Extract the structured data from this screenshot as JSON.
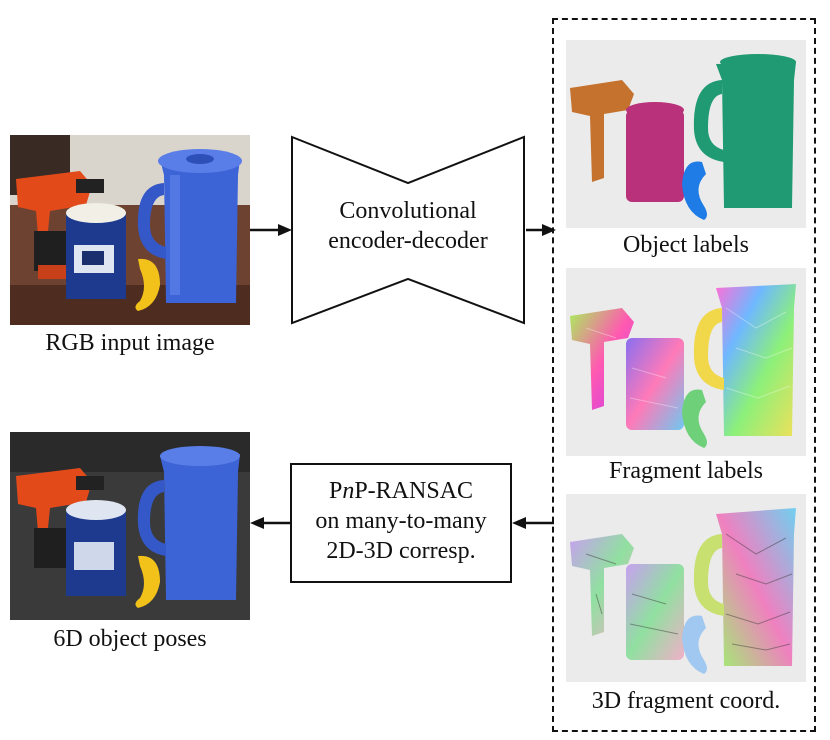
{
  "diagram": {
    "nodes": {
      "rgb_input": {
        "caption": "RGB input image"
      },
      "encoder_decoder": {
        "line1": "Convolutional",
        "line2": "encoder-decoder"
      },
      "object_labels": {
        "caption": "Object labels"
      },
      "fragment_labels": {
        "caption": "Fragment labels"
      },
      "fragment_coords": {
        "caption": "3D fragment coord."
      },
      "pnp_ransac": {
        "line1_pre": "P",
        "line1_italic": "n",
        "line1_post": "P-RANSAC",
        "line2": "on many-to-many",
        "line3": "2D-3D corresp."
      },
      "poses": {
        "caption": "6D object poses"
      }
    },
    "colors": {
      "label_drill": "#c4722e",
      "label_can": "#b8317a",
      "label_pitcher": "#1f9a72",
      "label_banana": "#1f7be6",
      "pitcher_blue": "#3d64d6",
      "drill_orange": "#e24a1a"
    }
  }
}
